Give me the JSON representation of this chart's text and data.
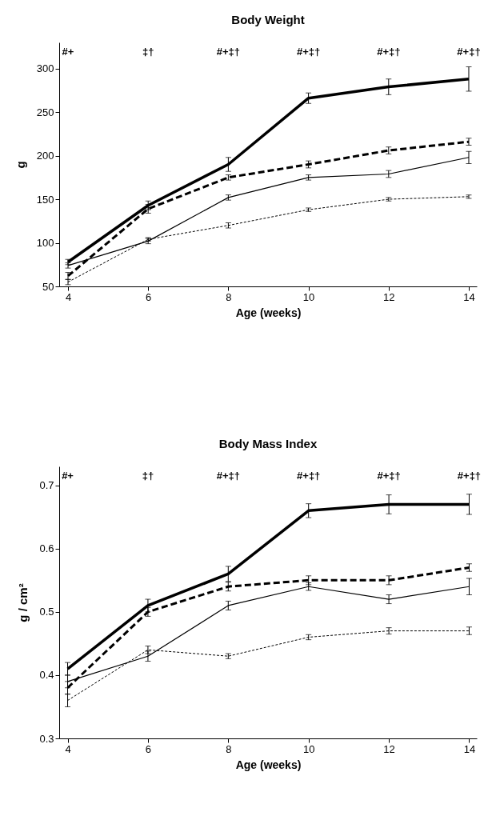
{
  "chart_data": [
    {
      "type": "line",
      "title": "Body Weight",
      "xlabel": "Age (weeks)",
      "ylabel": "g",
      "x": [
        4,
        6,
        8,
        10,
        12,
        14
      ],
      "xlim": [
        3.78,
        14.2
      ],
      "xticks": [
        4,
        6,
        8,
        10,
        12,
        14
      ],
      "ylim": [
        50,
        330
      ],
      "yticks": [
        50,
        100,
        150,
        200,
        250,
        300
      ],
      "grid": false,
      "series": [
        {
          "color": "#000000",
          "line_style": "solid",
          "values": [
            78,
            143,
            190,
            266,
            279,
            288
          ],
          "errors": [
            3,
            5,
            8,
            6,
            9,
            14
          ]
        },
        {
          "color": "#000000",
          "line_style": "dashed",
          "values": [
            62,
            139,
            175,
            190,
            206,
            216
          ],
          "errors": [
            4,
            5,
            3,
            4,
            4,
            4
          ]
        },
        {
          "color": "#000000",
          "line_style": "solid",
          "values": [
            74,
            102,
            152,
            175,
            179,
            198
          ],
          "errors": [
            3,
            3,
            3,
            3,
            4,
            7
          ]
        },
        {
          "color": "#000000",
          "line_style": "dotted",
          "values": [
            55,
            104,
            120,
            138,
            150,
            153
          ],
          "errors": [
            3,
            2,
            3,
            2,
            2,
            2
          ]
        }
      ],
      "annotations": [
        "#+",
        "‡†",
        "#+‡†",
        "#+‡†",
        "#+‡†",
        "#+‡†"
      ]
    },
    {
      "type": "line",
      "title": "Body Mass Index",
      "xlabel": "Age (weeks)",
      "ylabel": "g / cm²",
      "x": [
        4,
        6,
        8,
        10,
        12,
        14
      ],
      "xlim": [
        3.79,
        14.19
      ],
      "xticks": [
        4,
        6,
        8,
        10,
        12,
        14
      ],
      "ylim": [
        0.3,
        0.73
      ],
      "yticks": [
        0.3,
        0.4,
        0.5,
        0.6,
        0.7
      ],
      "grid": false,
      "series": [
        {
          "color": "#000000",
          "line_style": "solid",
          "values": [
            0.41,
            0.51,
            0.56,
            0.66,
            0.67,
            0.67
          ],
          "errors": [
            0.01,
            0.01,
            0.012,
            0.011,
            0.015,
            0.016
          ]
        },
        {
          "color": "#000000",
          "line_style": "dashed",
          "values": [
            0.38,
            0.5,
            0.54,
            0.55,
            0.55,
            0.57
          ],
          "errors": [
            0.01,
            0.007,
            0.007,
            0.007,
            0.007,
            0.006
          ]
        },
        {
          "color": "#000000",
          "line_style": "solid",
          "values": [
            0.39,
            0.43,
            0.51,
            0.54,
            0.52,
            0.54
          ],
          "errors": [
            0.01,
            0.008,
            0.007,
            0.006,
            0.007,
            0.013
          ]
        },
        {
          "color": "#000000",
          "line_style": "dotted",
          "values": [
            0.36,
            0.44,
            0.43,
            0.46,
            0.47,
            0.47
          ],
          "errors": [
            0.01,
            0.006,
            0.004,
            0.004,
            0.005,
            0.006
          ]
        }
      ],
      "annotations": [
        "#+",
        "‡†",
        "#+‡†",
        "#+‡†",
        "#+‡†",
        "#+‡†"
      ]
    }
  ]
}
